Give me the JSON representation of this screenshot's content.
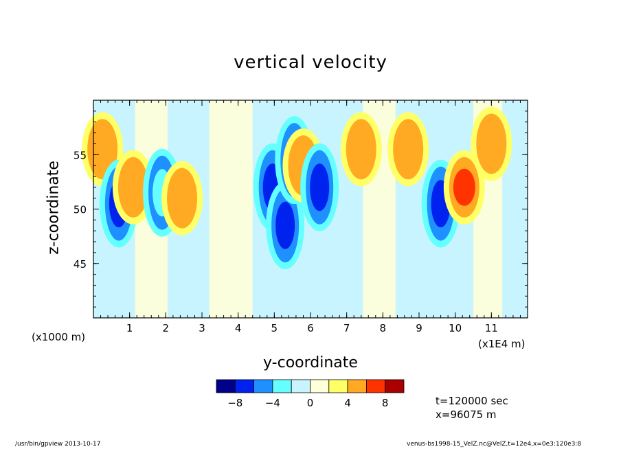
{
  "chart_data": {
    "type": "heatmap",
    "title": "vertical velocity",
    "xlabel": "y-coordinate",
    "ylabel": "z-coordinate",
    "x_unit_note": "(x1000 m)",
    "x_scale_note": "(x1E4 m)",
    "xlim": [
      0,
      12
    ],
    "ylim": [
      40,
      60
    ],
    "x_ticks": [
      1,
      2,
      3,
      4,
      5,
      6,
      7,
      8,
      9,
      10,
      11
    ],
    "y_ticks": [
      45,
      50,
      55
    ],
    "colorbar": {
      "levels": [
        -10,
        -8,
        -6,
        -4,
        -2,
        0,
        2,
        4,
        6,
        8,
        10
      ],
      "tick_labels": [
        "−8",
        "−4",
        "0",
        "4",
        "8"
      ],
      "colors": [
        "#00008b",
        "#0022ee",
        "#1e90ff",
        "#66ffff",
        "#c8f4ff",
        "#ffffd8",
        "#ffff66",
        "#ffaa22",
        "#ff3300",
        "#aa0000"
      ]
    },
    "features": [
      {
        "y": 0.25,
        "z": 55.5,
        "value": 4
      },
      {
        "y": 0.7,
        "z": 50.5,
        "value": -8
      },
      {
        "y": 1.1,
        "z": 52.0,
        "value": 4
      },
      {
        "y": 1.9,
        "z": 51.5,
        "value": -4
      },
      {
        "y": 2.45,
        "z": 51.0,
        "value": 4
      },
      {
        "y": 4.95,
        "z": 52.0,
        "value": -8
      },
      {
        "y": 5.3,
        "z": 48.5,
        "value": -8
      },
      {
        "y": 5.55,
        "z": 54.5,
        "value": -4
      },
      {
        "y": 5.8,
        "z": 54.0,
        "value": 4
      },
      {
        "y": 6.25,
        "z": 52.0,
        "value": -8
      },
      {
        "y": 7.4,
        "z": 55.5,
        "value": 4
      },
      {
        "y": 8.7,
        "z": 55.5,
        "value": 4
      },
      {
        "y": 9.6,
        "z": 50.5,
        "value": -8
      },
      {
        "y": 10.25,
        "z": 52.0,
        "value": 6
      },
      {
        "y": 11.0,
        "z": 56.0,
        "value": 4
      }
    ]
  },
  "info": {
    "time": "t=120000 sec",
    "position": "x=96075  m"
  },
  "footer": {
    "left": "/usr/bin/gpview   2013-10-17",
    "right": "venus-bs1998-15_VelZ.nc@VelZ,t=12e4,x=0e3:120e3:8"
  }
}
